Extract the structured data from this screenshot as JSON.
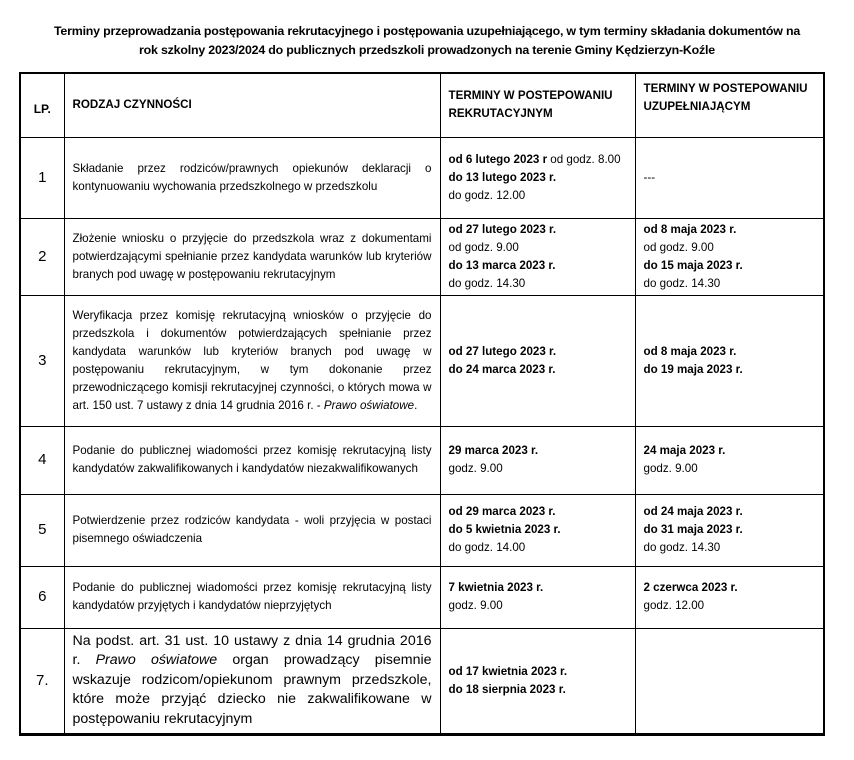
{
  "title": {
    "line1": "Terminy przeprowadzania postępowania rekrutacyjnego i postępowania uzupełniającego, w tym terminy składania dokumentów na",
    "line2": "rok szkolny 2023/2024 do publicznych przedszkoli prowadzonych na terenie Gminy Kędzierzyn-Koźle"
  },
  "header": {
    "lp": "LP.",
    "activity": "RODZAJ CZYNNOŚCI",
    "recruitment": "TERMINY W POSTEPOWANIU REKRUTACYJNYM",
    "supplementary": "TERMINY W POSTEPOWANIU UZUPEŁNIAJĄCYM"
  },
  "rows": [
    {
      "lp": "1",
      "desc": [
        "Składanie przez rodziców/prawnych opiekunów deklaracji o kontynuowaniu wychowania przedszkolnego w przedszkolu",
        "",
        ""
      ],
      "rec": [
        [
          "od 6 lutego 2023 r",
          " od godz. 8.00"
        ],
        [
          "do 13 lutego 2023 r.",
          ""
        ],
        [
          "",
          "do godz. 12.00"
        ]
      ],
      "sup": [
        [
          "",
          "---"
        ]
      ]
    },
    {
      "lp": "2",
      "desc": [
        "Złożenie wniosku o przyjęcie do przedszkola wraz z dokumentami potwierdzającymi spełnianie przez kandydata warunków lub kryteriów branych pod uwagę w postępowaniu rekrutacyjnym",
        "",
        ""
      ],
      "rec": [
        [
          "od 27 lutego 2023 r.",
          ""
        ],
        [
          "",
          "od godz. 9.00"
        ],
        [
          "do 13 marca 2023 r.",
          ""
        ],
        [
          "",
          "do godz. 14.30"
        ]
      ],
      "sup": [
        [
          "od 8 maja 2023 r.",
          ""
        ],
        [
          "",
          "od godz. 9.00"
        ],
        [
          "do 15 maja 2023 r.",
          ""
        ],
        [
          "",
          "do godz. 14.30"
        ]
      ]
    },
    {
      "lp": "3",
      "desc": [
        "Weryfikacja przez komisję rekrutacyjną wniosków o przyjęcie do przedszkola i dokumentów potwierdzających spełnianie przez kandydata warunków lub kryteriów branych pod uwagę w postępowaniu rekrutacyjnym, w tym dokonanie przez przewodniczącego komisji rekrutacyjnej czynności, o których mowa w art. 150 ust. 7 ustawy z dnia 14 grudnia 2016 r. - ",
        "Prawo oświatowe",
        "."
      ],
      "rec": [
        [
          "od 27 lutego 2023 r.",
          ""
        ],
        [
          "do 24 marca 2023 r.",
          ""
        ]
      ],
      "sup": [
        [
          "od 8 maja 2023 r.",
          ""
        ],
        [
          "do 19 maja 2023 r.",
          ""
        ]
      ]
    },
    {
      "lp": "4",
      "desc": [
        "Podanie do publicznej wiadomości przez komisję rekrutacyjną listy kandydatów zakwalifikowanych i kandydatów niezakwalifikowanych",
        "",
        ""
      ],
      "rec": [
        [
          "29 marca 2023 r.",
          ""
        ],
        [
          "",
          "godz. 9.00"
        ]
      ],
      "sup": [
        [
          "24 maja 2023 r.",
          ""
        ],
        [
          "",
          "godz. 9.00"
        ]
      ]
    },
    {
      "lp": "5",
      "desc": [
        "Potwierdzenie przez rodziców kandydata - woli przyjęcia w postaci pisemnego oświadczenia",
        "",
        ""
      ],
      "rec": [
        [
          "od 29 marca 2023 r.",
          ""
        ],
        [
          "do 5 kwietnia 2023 r.",
          ""
        ],
        [
          "",
          "do godz. 14.00"
        ]
      ],
      "sup": [
        [
          "od 24 maja 2023 r.",
          ""
        ],
        [
          "do 31 maja 2023 r.",
          ""
        ],
        [
          "",
          "do godz. 14.30"
        ]
      ]
    },
    {
      "lp": "6",
      "desc": [
        "Podanie do publicznej wiadomości przez komisję rekrutacyjną listy kandydatów przyjętych i kandydatów nieprzyjętych",
        "",
        ""
      ],
      "rec": [
        [
          "7 kwietnia 2023 r.",
          ""
        ],
        [
          "",
          "godz. 9.00"
        ]
      ],
      "sup": [
        [
          "2 czerwca 2023 r.",
          ""
        ],
        [
          "",
          "godz. 12.00"
        ]
      ]
    },
    {
      "lp": "7.",
      "desc": [
        "Na podst. art. 31 ust. 10 ustawy z dnia 14 grudnia 2016 r. ",
        "Prawo oświatowe",
        " organ prowadzący pisemnie wskazuje rodzicom/opiekunom prawnym przedszkole, które może przyjąć dziecko nie zakwalifikowane w postępowaniu rekrutacyjnym"
      ],
      "rec": [
        [
          "od 17 kwietnia 2023 r.",
          ""
        ],
        [
          "do 18 sierpnia 2023 r.",
          ""
        ]
      ],
      "sup": []
    }
  ]
}
